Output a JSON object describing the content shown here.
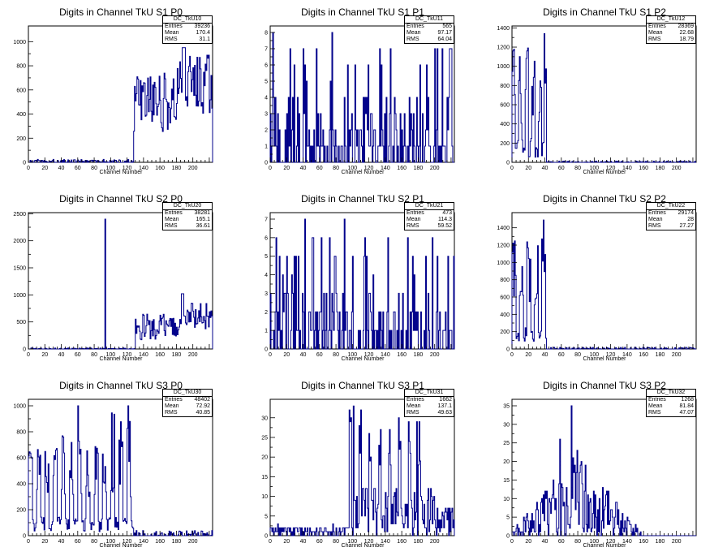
{
  "colors": {
    "line": "#00008b",
    "axis": "#000000",
    "background": "#ffffff"
  },
  "chart_data": [
    {
      "type": "histogram",
      "title": "Digits in Channel TkU S1 P0",
      "xlabel": "Channel Number",
      "ylabel": "",
      "xlim": [
        0,
        224
      ],
      "ylim": [
        0,
        1130
      ],
      "xticks": [
        0,
        20,
        40,
        60,
        80,
        100,
        120,
        140,
        160,
        180,
        200
      ],
      "yticks": [
        0,
        200,
        400,
        600,
        800,
        1000
      ],
      "stats": {
        "name": "DC_TkU10",
        "rows": [
          {
            "label": "Entries",
            "value": "39236"
          },
          {
            "label": "Mean",
            "value": "170.4"
          },
          {
            "label": "RMS",
            "value": "31.1"
          }
        ]
      },
      "series": [
        {
          "name": "DC_TkU10",
          "pattern": "s1p0"
        }
      ]
    },
    {
      "type": "histogram",
      "title": "Digits in Channel TkU S1 P1",
      "xlabel": "Channel Number",
      "ylabel": "",
      "xlim": [
        0,
        224
      ],
      "ylim": [
        0,
        8.4
      ],
      "xticks": [
        0,
        20,
        40,
        60,
        80,
        100,
        120,
        140,
        160,
        180,
        200
      ],
      "yticks": [
        0,
        1,
        2,
        3,
        4,
        5,
        6,
        7,
        8
      ],
      "stats": {
        "name": "DC_TkU11",
        "rows": [
          {
            "label": "Entries",
            "value": "565"
          },
          {
            "label": "Mean",
            "value": "97.17"
          },
          {
            "label": "RMS",
            "value": "64.04"
          }
        ]
      },
      "series": [
        {
          "name": "DC_TkU11",
          "pattern": "s1p1"
        }
      ]
    },
    {
      "type": "histogram",
      "title": "Digits in Channel TkU S1 P2",
      "xlabel": "Channel Number",
      "ylabel": "",
      "xlim": [
        0,
        224
      ],
      "ylim": [
        0,
        1420
      ],
      "xticks": [
        0,
        20,
        40,
        60,
        80,
        100,
        120,
        140,
        160,
        180,
        200
      ],
      "yticks": [
        0,
        200,
        400,
        600,
        800,
        1000,
        1200,
        1400
      ],
      "stats": {
        "name": "DC_TkU12",
        "rows": [
          {
            "label": "Entries",
            "value": "28369"
          },
          {
            "label": "Mean",
            "value": "22.68"
          },
          {
            "label": "RMS",
            "value": "18.79"
          }
        ]
      },
      "series": [
        {
          "name": "DC_TkU12",
          "pattern": "s1p2"
        }
      ]
    },
    {
      "type": "histogram",
      "title": "Digits in Channel TkU S2 P0",
      "xlabel": "Channel Number",
      "ylabel": "",
      "xlim": [
        0,
        224
      ],
      "ylim": [
        0,
        2520
      ],
      "xticks": [
        0,
        20,
        40,
        60,
        80,
        100,
        120,
        140,
        160,
        180,
        200
      ],
      "yticks": [
        0,
        500,
        1000,
        1500,
        2000,
        2500
      ],
      "stats": {
        "name": "DC_TkU20",
        "rows": [
          {
            "label": "Entries",
            "value": "38281"
          },
          {
            "label": "Mean",
            "value": "165.1"
          },
          {
            "label": "RMS",
            "value": "36.61"
          }
        ]
      },
      "series": [
        {
          "name": "DC_TkU20",
          "pattern": "s2p0"
        }
      ]
    },
    {
      "type": "histogram",
      "title": "Digits in Channel TkU S2 P1",
      "xlabel": "Channel Number",
      "ylabel": "",
      "xlim": [
        0,
        224
      ],
      "ylim": [
        0,
        7.35
      ],
      "xticks": [
        0,
        20,
        40,
        60,
        80,
        100,
        120,
        140,
        160,
        180,
        200
      ],
      "yticks": [
        0,
        1,
        2,
        3,
        4,
        5,
        6,
        7
      ],
      "stats": {
        "name": "DC_TkU21",
        "rows": [
          {
            "label": "Entries",
            "value": "473"
          },
          {
            "label": "Mean",
            "value": "114.3"
          },
          {
            "label": "RMS",
            "value": "59.52"
          }
        ]
      },
      "series": [
        {
          "name": "DC_TkU21",
          "pattern": "s2p1"
        }
      ]
    },
    {
      "type": "histogram",
      "title": "Digits in Channel TkU S2 P2",
      "xlabel": "Channel Number",
      "ylabel": "",
      "xlim": [
        0,
        224
      ],
      "ylim": [
        0,
        1575
      ],
      "xticks": [
        0,
        20,
        40,
        60,
        80,
        100,
        120,
        140,
        160,
        180,
        200
      ],
      "yticks": [
        0,
        200,
        400,
        600,
        800,
        1000,
        1200,
        1400
      ],
      "stats": {
        "name": "DC_TkU22",
        "rows": [
          {
            "label": "Entries",
            "value": "29174"
          },
          {
            "label": "Mean",
            "value": "28"
          },
          {
            "label": "RMS",
            "value": "27.27"
          }
        ]
      },
      "series": [
        {
          "name": "DC_TkU22",
          "pattern": "s2p2"
        }
      ]
    },
    {
      "type": "histogram",
      "title": "Digits in Channel TkU S3 P0",
      "xlabel": "Channel Number",
      "ylabel": "",
      "xlim": [
        0,
        224
      ],
      "ylim": [
        0,
        1050
      ],
      "xticks": [
        0,
        20,
        40,
        60,
        80,
        100,
        120,
        140,
        160,
        180,
        200
      ],
      "yticks": [
        0,
        200,
        400,
        600,
        800,
        1000
      ],
      "stats": {
        "name": "DC_TkU30",
        "rows": [
          {
            "label": "Entries",
            "value": "48402"
          },
          {
            "label": "Mean",
            "value": "72.92"
          },
          {
            "label": "RMS",
            "value": "40.85"
          }
        ]
      },
      "series": [
        {
          "name": "DC_TkU30",
          "pattern": "s3p0"
        }
      ]
    },
    {
      "type": "histogram",
      "title": "Digits in Channel TkU S3 P1",
      "xlabel": "Channel Number",
      "ylabel": "",
      "xlim": [
        0,
        224
      ],
      "ylim": [
        0,
        34.7
      ],
      "xticks": [
        0,
        20,
        40,
        60,
        80,
        100,
        120,
        140,
        160,
        180,
        200
      ],
      "yticks": [
        0,
        5,
        10,
        15,
        20,
        25,
        30
      ],
      "stats": {
        "name": "DC_TkU31",
        "rows": [
          {
            "label": "Entries",
            "value": "1662"
          },
          {
            "label": "Mean",
            "value": "137.1"
          },
          {
            "label": "RMS",
            "value": "49.63"
          }
        ]
      },
      "series": [
        {
          "name": "DC_TkU31",
          "pattern": "s3p1"
        }
      ]
    },
    {
      "type": "histogram",
      "title": "Digits in Channel TkU S3 P2",
      "xlabel": "Channel Number",
      "ylabel": "",
      "xlim": [
        0,
        224
      ],
      "ylim": [
        0,
        36.75
      ],
      "xticks": [
        0,
        20,
        40,
        60,
        80,
        100,
        120,
        140,
        160,
        180,
        200
      ],
      "yticks": [
        0,
        5,
        10,
        15,
        20,
        25,
        30,
        35
      ],
      "stats": {
        "name": "DC_TkU32",
        "rows": [
          {
            "label": "Entries",
            "value": "1268"
          },
          {
            "label": "Mean",
            "value": "81.84"
          },
          {
            "label": "RMS",
            "value": "47.07"
          }
        ]
      },
      "series": [
        {
          "name": "DC_TkU32",
          "pattern": "s3p2"
        }
      ]
    }
  ]
}
